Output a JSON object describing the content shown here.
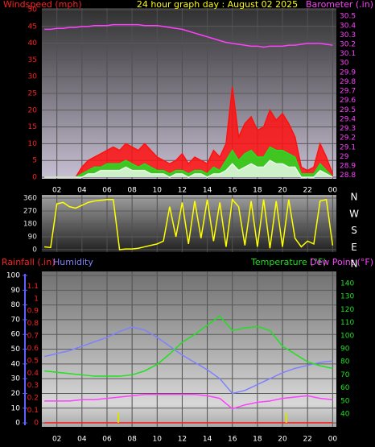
{
  "chart_data": [
    {
      "type": "area",
      "title": "24 hour graph day : August 02 2025",
      "ylabel": "Windspeed (mph)",
      "y2label": "Barometer (.in)",
      "ycolor": "#ff2020",
      "y2color": "#ff40ff",
      "xlim": [
        0.8,
        24.3
      ],
      "xticks": [
        {
          "value": 2,
          "label": "02"
        },
        {
          "value": 4,
          "label": "04"
        },
        {
          "value": 6,
          "label": "06"
        },
        {
          "value": 8,
          "label": "08"
        },
        10,
        12,
        14,
        16,
        18,
        20,
        22,
        {
          "value": 24,
          "label": "00"
        }
      ],
      "ylim": [
        0,
        50
      ],
      "yticks": [
        0,
        5,
        10,
        15,
        20,
        25,
        30,
        35,
        40,
        45,
        50
      ],
      "y2lim": [
        28.78,
        30.57
      ],
      "y2ticks": [
        28.8,
        28.9,
        29,
        29.1,
        29.2,
        29.3,
        29.4,
        29.5,
        29.6,
        29.7,
        29.8,
        29.9,
        30,
        30.1,
        30.2,
        30.3,
        30.4,
        30.5
      ],
      "grid": true,
      "x": [
        1,
        1.5,
        2,
        2.5,
        3,
        3.5,
        4,
        4.5,
        5,
        5.5,
        6,
        6.5,
        7,
        7.5,
        8,
        8.5,
        9,
        9.5,
        10,
        10.5,
        11,
        11.5,
        12,
        12.5,
        13,
        13.5,
        14,
        14.5,
        15,
        15.5,
        16,
        16.5,
        17,
        17.5,
        18,
        18.5,
        19,
        19.5,
        20,
        20.5,
        21,
        21.5,
        22,
        22.5,
        23,
        23.5,
        24
      ],
      "series": [
        {
          "color": "#ff1010",
          "fill": true,
          "values": [
            0,
            0,
            0,
            0,
            0,
            0,
            3,
            5,
            6,
            7,
            8,
            9,
            8,
            10,
            9,
            8,
            10,
            8,
            6,
            5,
            4,
            5,
            7,
            4,
            6,
            5,
            4,
            8,
            6,
            10,
            27,
            12,
            16,
            18,
            14,
            15,
            20,
            17,
            19,
            16,
            12,
            3,
            2,
            3,
            10,
            6,
            1
          ]
        },
        {
          "color": "#20e020",
          "fill": true,
          "values": [
            0,
            0,
            0,
            0,
            0,
            0,
            1,
            2,
            3,
            3,
            4,
            4,
            4,
            5,
            4,
            3,
            4,
            3,
            2,
            2,
            1,
            2,
            2,
            1,
            2,
            2,
            1,
            3,
            2,
            5,
            8,
            5,
            7,
            8,
            6,
            6,
            9,
            8,
            8,
            7,
            6,
            1,
            1,
            1,
            4,
            2,
            0
          ]
        },
        {
          "color": "#e8f8e8",
          "fill": true,
          "values": [
            0,
            0,
            0,
            0,
            0,
            0,
            0,
            1,
            1,
            2,
            2,
            2,
            2,
            3,
            2,
            2,
            2,
            1,
            1,
            1,
            0,
            1,
            1,
            0,
            1,
            1,
            0,
            1,
            1,
            2,
            4,
            2,
            3,
            4,
            3,
            3,
            5,
            4,
            4,
            3,
            3,
            0,
            0,
            0,
            2,
            1,
            0
          ]
        },
        {
          "color": "#ff40ff",
          "axis": "y2",
          "values": [
            30.36,
            30.36,
            30.37,
            30.37,
            30.38,
            30.38,
            30.39,
            30.39,
            30.4,
            30.4,
            30.4,
            30.41,
            30.41,
            30.41,
            30.41,
            30.41,
            30.4,
            30.4,
            30.4,
            30.39,
            30.38,
            30.37,
            30.36,
            30.34,
            30.32,
            30.3,
            30.28,
            30.26,
            30.24,
            30.22,
            30.21,
            30.2,
            30.19,
            30.18,
            30.18,
            30.17,
            30.18,
            30.18,
            30.18,
            30.19,
            30.19,
            30.2,
            30.21,
            30.21,
            30.21,
            30.2,
            30.19
          ]
        }
      ]
    },
    {
      "type": "line",
      "ycolor": "#e0e0e0",
      "xlim": [
        0.8,
        24.3
      ],
      "ylim": [
        0,
        360
      ],
      "yticks": [
        0,
        90,
        180,
        270,
        360
      ],
      "grid": true,
      "compass": [
        "N",
        "W",
        "S",
        "E",
        "N"
      ],
      "x": [
        1,
        1.5,
        2,
        2.5,
        3,
        3.5,
        4,
        4.5,
        5,
        5.5,
        6,
        6.5,
        7,
        7.5,
        8,
        8.5,
        9,
        9.5,
        10,
        10.5,
        11,
        11.5,
        12,
        12.5,
        13,
        13.5,
        14,
        14.5,
        15,
        15.5,
        16,
        16.5,
        17,
        17.5,
        18,
        18.5,
        19,
        19.5,
        20,
        20.5,
        21,
        21.5,
        22,
        22.5,
        23,
        23.5,
        24
      ],
      "series": [
        {
          "color": "#ffff00",
          "values": [
            20,
            15,
            320,
            330,
            300,
            290,
            310,
            330,
            340,
            345,
            350,
            350,
            0,
            5,
            5,
            10,
            20,
            30,
            40,
            60,
            300,
            90,
            330,
            40,
            340,
            80,
            350,
            60,
            330,
            20,
            350,
            300,
            30,
            340,
            20,
            350,
            10,
            340,
            20,
            350,
            80,
            20,
            60,
            40,
            340,
            350,
            30
          ]
        }
      ]
    },
    {
      "type": "line",
      "ycolor": "#ffffff",
      "y2color": "#ff2020",
      "y3color": "#20e020",
      "xlim": [
        0.8,
        24.3
      ],
      "xticks": [
        {
          "value": 2,
          "label": "02"
        },
        {
          "value": 4,
          "label": "04"
        },
        {
          "value": 6,
          "label": "06"
        },
        {
          "value": 8,
          "label": "08"
        },
        10,
        12,
        14,
        16,
        18,
        20,
        22,
        {
          "value": 24,
          "label": "00"
        }
      ],
      "ylim": [
        -1.6,
        101.1
      ],
      "yticks": [
        0,
        10,
        20,
        30,
        40,
        50,
        60,
        70,
        80,
        90,
        100
      ],
      "y2lim": [
        -0.02,
        1.2
      ],
      "y2ticks": [
        0,
        0.1,
        0.2,
        0.3,
        0.4,
        0.5,
        0.6,
        0.7,
        0.8,
        0.9,
        1,
        1.1
      ],
      "y3lim": [
        31.4,
        147.4
      ],
      "y3ticks": [
        40,
        50,
        60,
        70,
        80,
        90,
        100,
        110,
        120,
        130,
        140
      ],
      "grid": true,
      "x": [
        1,
        2,
        3,
        4,
        5,
        6,
        7,
        8,
        9,
        10,
        11,
        12,
        13,
        14,
        15,
        16,
        17,
        18,
        19,
        20,
        21,
        22,
        23,
        24
      ],
      "series": [
        {
          "name": "Humidity",
          "color": "#8080ff",
          "values": [
            45,
            47,
            49,
            52,
            55,
            58,
            62,
            65,
            63,
            58,
            52,
            46,
            41,
            36,
            30,
            20,
            22,
            26,
            30,
            34,
            37,
            39,
            41,
            42
          ]
        },
        {
          "name": "Temperature (°F)",
          "color": "#20e020",
          "axis": "y3",
          "values": [
            73,
            72,
            71,
            70,
            69,
            69,
            69,
            70,
            73,
            78,
            86,
            95,
            101,
            108,
            115,
            104,
            106,
            107,
            104,
            92,
            86,
            80,
            77,
            75
          ]
        },
        {
          "name": "Dew Point (°F)",
          "color": "#ff40ff",
          "axis": "y3",
          "values": [
            50,
            50,
            50,
            51,
            51,
            52,
            53,
            54,
            55,
            55,
            55,
            55,
            55,
            54,
            52,
            44,
            47,
            49,
            50,
            52,
            53,
            54,
            52,
            51
          ]
        },
        {
          "name": "Rainfall (.in)",
          "color": "#ff2020",
          "axis": "y2",
          "values": [
            0,
            0,
            0,
            0,
            0,
            0,
            0,
            0,
            0,
            0,
            0,
            0,
            0,
            0,
            0,
            0,
            0,
            0,
            0,
            0,
            0,
            0,
            0,
            0
          ]
        }
      ],
      "rain_marks": {
        "color": "#e0e000",
        "axis": "y2",
        "x": [
          6.9,
          20.3
        ],
        "values": [
          0.08,
          0.08
        ]
      }
    }
  ]
}
